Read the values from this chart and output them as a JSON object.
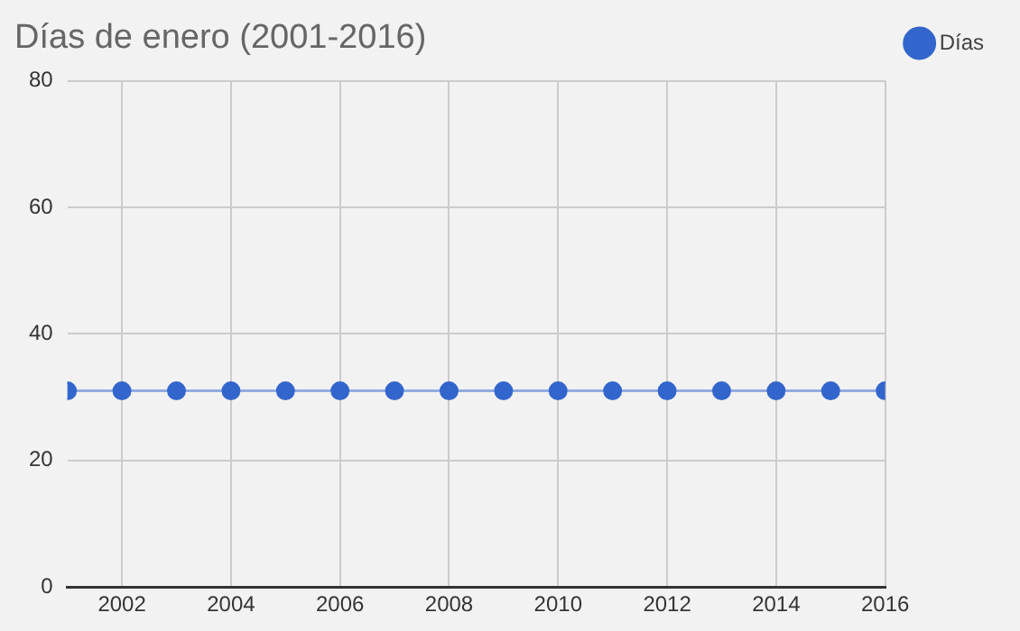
{
  "chart_data": {
    "type": "line",
    "title": "Días de enero (2001-2016)",
    "x": [
      2001,
      2002,
      2003,
      2004,
      2005,
      2006,
      2007,
      2008,
      2009,
      2010,
      2011,
      2012,
      2013,
      2014,
      2015,
      2016
    ],
    "series": [
      {
        "name": "Días",
        "color": "#3366cc",
        "values": [
          31,
          31,
          31,
          31,
          31,
          31,
          31,
          31,
          31,
          31,
          31,
          31,
          31,
          31,
          31,
          31
        ]
      }
    ],
    "xlim": [
      2001,
      2016
    ],
    "xticks": [
      2002,
      2004,
      2006,
      2008,
      2010,
      2012,
      2014,
      2016
    ],
    "ylim": [
      0,
      80
    ],
    "yticks": [
      0,
      20,
      40,
      60,
      80
    ],
    "grid": true,
    "legend": "right",
    "marker": "circle",
    "line_style": "solid"
  }
}
